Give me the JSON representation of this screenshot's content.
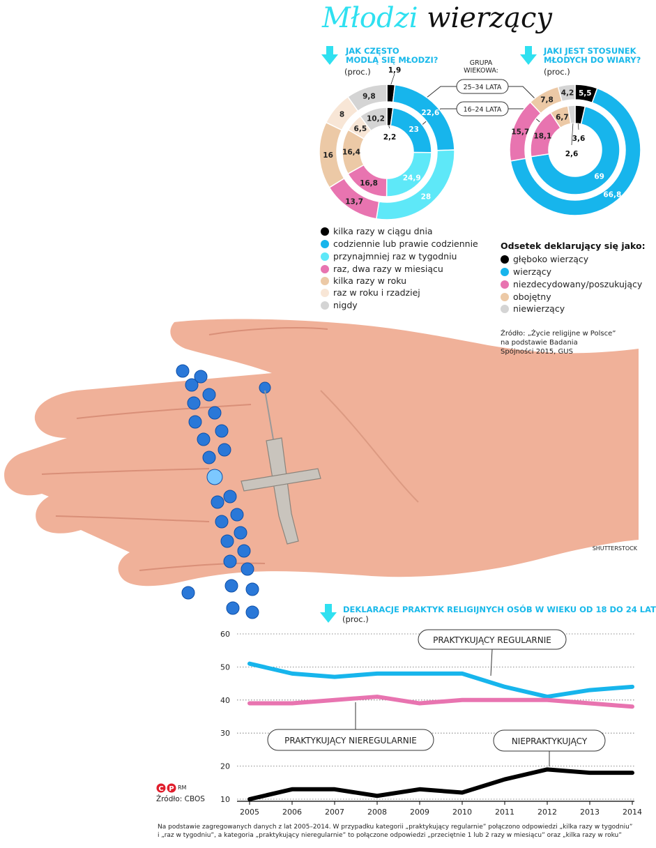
{
  "title": {
    "part1": "Młodzi",
    "part2": "wierzący"
  },
  "colors": {
    "black": "#000000",
    "blue": "#17b5ec",
    "cyan": "#5ee8f8",
    "pink": "#e874b0",
    "tan": "#ecc9a6",
    "cream": "#f8e6d6",
    "gray": "#d4d4d4"
  },
  "left_panel": {
    "heading_line1": "JAK CZĘSTO",
    "heading_line2": "MODLĄ SIĘ MŁODZI?",
    "unit": "(proc.)"
  },
  "right_panel": {
    "heading_line1": "JAKI JEST STOSUNEK",
    "heading_line2": "MŁODYCH DO WIARY?",
    "unit": "(proc.)"
  },
  "group": {
    "label_line1": "GRUPA",
    "label_line2": "WIEKOWA:",
    "outer": "25–34 LATA",
    "inner": "16–24 LATA"
  },
  "legend_prayer": [
    {
      "label": "kilka razy w ciągu dnia",
      "color": "#000000"
    },
    {
      "label": "codziennie lub prawie codziennie",
      "color": "#17b5ec"
    },
    {
      "label": "przynajmniej raz w tygodniu",
      "color": "#5ee8f8"
    },
    {
      "label": "raz, dwa razy w miesiącu",
      "color": "#e874b0"
    },
    {
      "label": "kilka razy w roku",
      "color": "#ecc9a6"
    },
    {
      "label": "raz w roku i rzadziej",
      "color": "#f8e6d6"
    },
    {
      "label": "nigdy",
      "color": "#d4d4d4"
    }
  ],
  "legend_faith": {
    "title": "Odsetek deklarujący się jako:",
    "items": [
      {
        "label": "głęboko wierzący",
        "color": "#000000"
      },
      {
        "label": "wierzący",
        "color": "#17b5ec"
      },
      {
        "label": "niezdecydowany/poszukujący",
        "color": "#e874b0"
      },
      {
        "label": "obojętny",
        "color": "#ecc9a6"
      },
      {
        "label": "niewierzący",
        "color": "#d4d4d4"
      }
    ]
  },
  "source_top": {
    "line1": "Źródło: „Życie religijne w Polsce”",
    "line2": "na podstawie Badania",
    "line3": "Spójności 2015, GUS"
  },
  "photo_credit": "SHUTTERSTOCK",
  "line_chart": {
    "heading": "DEKLARACJE PRAKTYK RELIGIJNYCH OSÓB W WIEKU OD 18 DO 24 LAT",
    "unit": "(proc.)",
    "label_regular": "PRAKTYKUJĄCY REGULARNIE",
    "label_irregular": "PRAKTYKUJĄCY NIEREGULARNIE",
    "label_non": "NIEPRAKTYKUJĄCY"
  },
  "logo_text": "RM",
  "source_bottom": "Źródło: CBOS",
  "footnote": {
    "line1": "Na podstawie zagregowanych danych z lat 2005–2014. W przypadku kategorii „praktykujący regularnie” połączono odpowiedzi „kilka razy  w tygodniu”",
    "line2": "i „raz w tygodniu”, a kategoria „praktykujący nieregularnie” to połączone odpowiedzi „przeciętnie 1 lub 2 razy w miesiącu” oraz „kilka razy w roku”"
  },
  "chart_data": [
    {
      "type": "pie",
      "title": "JAK CZĘSTO MODLĄ SIĘ MŁODZI?",
      "categories": [
        "kilka razy w ciągu dnia",
        "codziennie lub prawie codziennie",
        "przynajmniej raz w tygodniu",
        "raz, dwa razy w miesiącu",
        "kilka razy w roku",
        "raz w roku i rzadziej",
        "nigdy"
      ],
      "series": [
        {
          "name": "25–34 LATA",
          "values": [
            1.9,
            22.6,
            28,
            13.7,
            16,
            8,
            9.8
          ]
        },
        {
          "name": "16–24 LATA",
          "values": [
            2.2,
            23,
            24.9,
            16.8,
            16.4,
            6.5,
            10.2
          ]
        }
      ]
    },
    {
      "type": "pie",
      "title": "JAKI JEST STOSUNEK MŁODYCH DO WIARY?",
      "categories": [
        "głęboko wierzący",
        "wierzący",
        "niezdecydowany/poszukujący",
        "obojętny",
        "niewierzący"
      ],
      "series": [
        {
          "name": "25–34 LATA",
          "values": [
            5.5,
            66.8,
            15.7,
            7.8,
            4.2
          ]
        },
        {
          "name": "16–24 LATA",
          "values": [
            3.6,
            69,
            18.1,
            6.7,
            2.6
          ]
        }
      ]
    },
    {
      "type": "line",
      "title": "DEKLARACJE PRAKTYK RELIGIJNYCH OSÓB W WIEKU OD 18 DO 24 LAT",
      "x": [
        2005,
        2006,
        2007,
        2008,
        2009,
        2010,
        2011,
        2012,
        2013,
        2014
      ],
      "ylim": [
        10,
        60
      ],
      "yticks": [
        10,
        20,
        30,
        40,
        50,
        60
      ],
      "grid": true,
      "series": [
        {
          "name": "PRAKTYKUJĄCY REGULARNIE",
          "color": "#17b5ec",
          "values": [
            51,
            48,
            47,
            48,
            48,
            48,
            44,
            41,
            43,
            44
          ]
        },
        {
          "name": "PRAKTYKUJĄCY NIEREGULARNIE",
          "color": "#e874b0",
          "values": [
            39,
            39,
            40,
            41,
            39,
            40,
            40,
            40,
            39,
            38
          ]
        },
        {
          "name": "NIEPRAKTYKUJĄCY",
          "color": "#000000",
          "values": [
            10,
            13,
            13,
            11,
            13,
            12,
            16,
            19,
            18,
            18
          ]
        }
      ]
    }
  ]
}
